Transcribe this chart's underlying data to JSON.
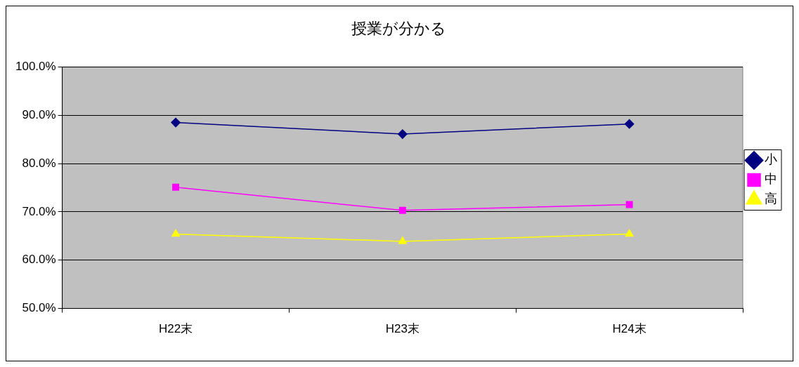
{
  "chart_data": {
    "type": "line",
    "title": "授業が分かる",
    "categories": [
      "H22末",
      "H23末",
      "H24末"
    ],
    "series": [
      {
        "name": "小",
        "color": "#000080",
        "values": [
          88.5,
          86.1,
          88.2
        ],
        "marker": "diamond"
      },
      {
        "name": "中",
        "color": "#ff00ff",
        "values": [
          75.1,
          70.3,
          71.5
        ],
        "marker": "square"
      },
      {
        "name": "高",
        "color": "#ffff00",
        "values": [
          65.4,
          63.9,
          65.4
        ],
        "marker": "triangle"
      }
    ],
    "ylim": [
      50,
      100
    ],
    "yticks": [
      {
        "value": 50,
        "label": "50.0%"
      },
      {
        "value": 60,
        "label": "60.0%"
      },
      {
        "value": 70,
        "label": "70.0%"
      },
      {
        "value": 80,
        "label": "80.0%"
      },
      {
        "value": 90,
        "label": "90.0%"
      },
      {
        "value": 100,
        "label": "100.0%"
      }
    ],
    "grid": "y",
    "legend": "right"
  }
}
